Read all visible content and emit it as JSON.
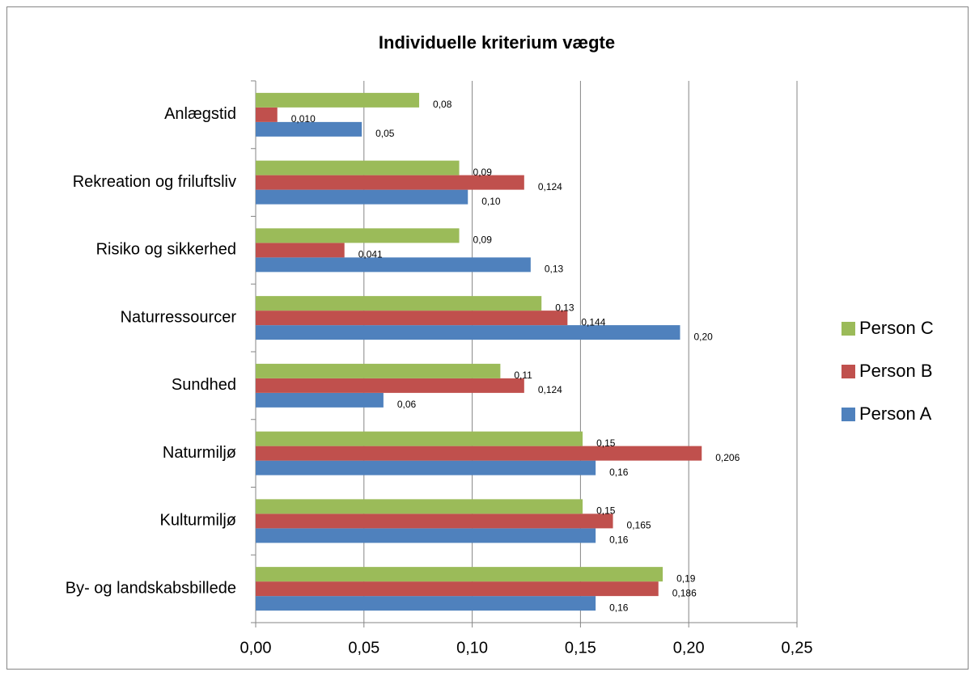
{
  "chart_data": {
    "type": "bar",
    "orientation": "horizontal",
    "title": "Individuelle kriterium vægte",
    "categories": [
      "Anlægstid",
      "Rekreation og friluftsliv",
      "Risiko og sikkerhed",
      "Naturressourcer",
      "Sundhed",
      "Naturmiljø",
      "Kulturmiljø",
      "By- og landskabsbillede"
    ],
    "series": [
      {
        "name": "Person A",
        "color": "#4f81bd",
        "values": [
          0.049,
          0.098,
          0.127,
          0.196,
          0.059,
          0.157,
          0.157,
          0.157
        ],
        "value_labels": [
          "0,05",
          "0,10",
          "0,13",
          "0,20",
          "0,06",
          "0,16",
          "0,16",
          "0,16"
        ]
      },
      {
        "name": "Person B",
        "color": "#c0504d",
        "values": [
          0.01,
          0.124,
          0.041,
          0.144,
          0.124,
          0.206,
          0.165,
          0.186
        ],
        "value_labels": [
          "0,010",
          "0,124",
          "0,041",
          "0,144",
          "0,124",
          "0,206",
          "0,165",
          "0,186"
        ]
      },
      {
        "name": "Person C",
        "color": "#9bbb59",
        "values": [
          0.0755,
          0.094,
          0.094,
          0.132,
          0.113,
          0.151,
          0.151,
          0.188
        ],
        "value_labels": [
          "0,08",
          "0,09",
          "0,09",
          "0,13",
          "0,11",
          "0,15",
          "0,15",
          "0,19"
        ]
      }
    ],
    "xlim": [
      0,
      0.25
    ],
    "xticks": [
      {
        "value": 0,
        "label": "0,00"
      },
      {
        "value": 0.05,
        "label": "0,05"
      },
      {
        "value": 0.1,
        "label": "0,10"
      },
      {
        "value": 0.15,
        "label": "0,15"
      },
      {
        "value": 0.2,
        "label": "0,20"
      },
      {
        "value": 0.25,
        "label": "0,25"
      }
    ],
    "grid": true,
    "legend": "right"
  }
}
